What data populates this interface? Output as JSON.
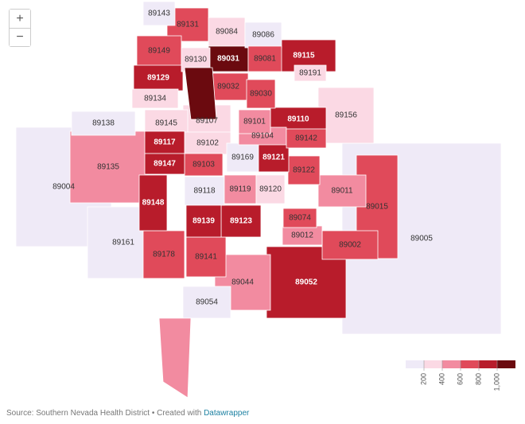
{
  "zoom": [
    "+",
    "−"
  ],
  "map": {
    "regions": [
      {
        "label": "89143",
        "color": "#efeaf7"
      },
      {
        "label": "89131",
        "color": "#e04a5a"
      },
      {
        "label": "89084",
        "color": "#fbd9e4"
      },
      {
        "label": "89086",
        "color": "#efeaf7"
      },
      {
        "label": "89149",
        "color": "#e04a5a"
      },
      {
        "label": "89130",
        "color": "#fbd9e4"
      },
      {
        "label": "89031",
        "color": "#6b0a0f"
      },
      {
        "label": "89081",
        "color": "#e04a5a"
      },
      {
        "label": "89115",
        "color": "#b81c2b"
      },
      {
        "label": "89191",
        "color": "#fbd9e4"
      },
      {
        "label": "89129",
        "color": "#b81c2b"
      },
      {
        "label": "89032",
        "color": "#e04a5a"
      },
      {
        "label": "89030",
        "color": "#e04a5a"
      },
      {
        "label": "89134",
        "color": "#fbd9e4"
      },
      {
        "label": "89107",
        "color": "#fbd9e4"
      },
      {
        "label": "89138",
        "color": "#efeaf7"
      },
      {
        "label": "89145",
        "color": "#fbd9e4"
      },
      {
        "label": "89101",
        "color": "#f28ba0"
      },
      {
        "label": "89110",
        "color": "#b81c2b"
      },
      {
        "label": "89156",
        "color": "#fbd9e4"
      },
      {
        "label": "89117",
        "color": "#b81c2b"
      },
      {
        "label": "89102",
        "color": "#fbd9e4"
      },
      {
        "label": "89104",
        "color": "#f28ba0"
      },
      {
        "label": "89142",
        "color": "#e04a5a"
      },
      {
        "label": "89169",
        "color": "#efeaf7"
      },
      {
        "label": "89121",
        "color": "#b81c2b"
      },
      {
        "label": "89004",
        "color": "#efeaf7"
      },
      {
        "label": "89135",
        "color": "#f28ba0"
      },
      {
        "label": "89147",
        "color": "#b81c2b"
      },
      {
        "label": "89103",
        "color": "#e04a5a"
      },
      {
        "label": "89122",
        "color": "#e04a5a"
      },
      {
        "label": "89148",
        "color": "#b81c2b"
      },
      {
        "label": "89118",
        "color": "#efeaf7"
      },
      {
        "label": "89119",
        "color": "#f28ba0"
      },
      {
        "label": "89120",
        "color": "#fbd9e4"
      },
      {
        "label": "89011",
        "color": "#f28ba0"
      },
      {
        "label": "89005",
        "color": "#efeaf7"
      },
      {
        "label": "89015",
        "color": "#e04a5a"
      },
      {
        "label": "89139",
        "color": "#b81c2b"
      },
      {
        "label": "89123",
        "color": "#b81c2b"
      },
      {
        "label": "89074",
        "color": "#e04a5a"
      },
      {
        "label": "89012",
        "color": "#f28ba0"
      },
      {
        "label": "89161",
        "color": "#efeaf7"
      },
      {
        "label": "89002",
        "color": "#e04a5a"
      },
      {
        "label": "89178",
        "color": "#e04a5a"
      },
      {
        "label": "89141",
        "color": "#e04a5a"
      },
      {
        "label": "89052",
        "color": "#b81c2b"
      },
      {
        "label": "89044",
        "color": "#f28ba0"
      },
      {
        "label": "89054",
        "color": "#efeaf7"
      }
    ]
  },
  "legend": {
    "colors": [
      "#efeaf7",
      "#fbd9e4",
      "#f28ba0",
      "#e04a5a",
      "#b81c2b",
      "#6b0a0f"
    ],
    "ticks": [
      200,
      400,
      600,
      800,
      {
        "value": 1000,
        "label": "1,000"
      }
    ]
  },
  "footer": {
    "source": "Source: Southern Nevada Health District • Created with",
    "link": "Datawrapper"
  }
}
